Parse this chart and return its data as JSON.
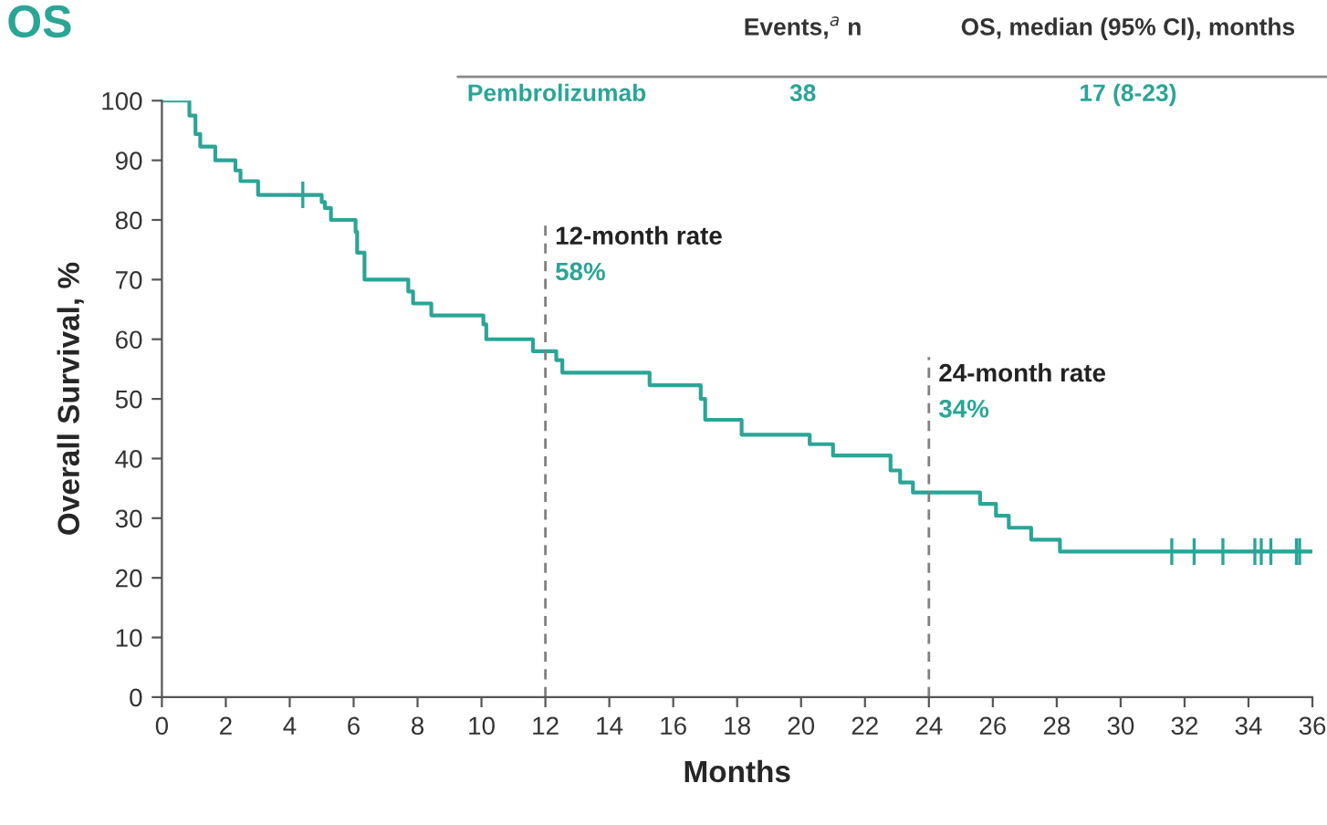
{
  "chart_data": {
    "type": "step",
    "title": "OS",
    "xlabel": "Months",
    "ylabel": "Overall Survival, %",
    "xlim": [
      0,
      36
    ],
    "ylim": [
      0,
      100
    ],
    "xticks": [
      0,
      2,
      4,
      6,
      8,
      10,
      12,
      14,
      16,
      18,
      20,
      22,
      24,
      26,
      28,
      30,
      32,
      34,
      36
    ],
    "yticks": [
      0,
      10,
      20,
      30,
      40,
      50,
      60,
      70,
      80,
      90,
      100
    ],
    "grid": false,
    "legend": false,
    "line_style": "solid",
    "series": [
      {
        "color": "#2aa596",
        "x": [
          0,
          0.86,
          1.05,
          1.2,
          1.3,
          1.67,
          2.3,
          2.46,
          3.01,
          5.0,
          5.1,
          5.29,
          6.06,
          6.11,
          6.34,
          7.71,
          7.86,
          8.43,
          10.06,
          10.15,
          11.61,
          12.34,
          12.53,
          15.26,
          16.86,
          17.0,
          18.14,
          20.27,
          21.0,
          22.8,
          23.1,
          23.5,
          25.6,
          26.1,
          26.5,
          27.2,
          28.1,
          36
        ],
        "values": [
          100,
          97.5,
          94.4,
          92.3,
          92.3,
          90,
          88.3,
          86.5,
          84.2,
          83,
          82,
          80,
          78,
          74.5,
          70,
          68,
          66,
          64,
          62.5,
          60,
          58,
          56.5,
          54.4,
          52.3,
          50,
          46.5,
          44,
          42.4,
          40.5,
          38,
          36,
          34.3,
          32.4,
          30.4,
          28.4,
          26.4,
          24.4,
          24.4
        ]
      },
      {
        "type": "scatter",
        "marker": "cross",
        "color": "#2aa596",
        "x": [
          4.41,
          31.6,
          32.3,
          33.2,
          34.2,
          34.4,
          34.7,
          35.5,
          35.6
        ],
        "values": [
          84.2,
          24.4,
          24.4,
          24.4,
          24.4,
          24.4,
          24.4,
          24.4,
          24.4
        ]
      }
    ],
    "ref_lines": [
      {
        "axis": "x",
        "value": 12,
        "label": "12-month rate",
        "color": "#808080",
        "line_style": "dashed"
      },
      {
        "axis": "x",
        "value": 24,
        "label": "24-month rate",
        "color": "#808080",
        "line_style": "dashed"
      }
    ],
    "annotations": [
      "58%",
      "34%",
      "Events,$^{a}$ n",
      "OS, median (95% CI), months",
      "Pembrolizumab",
      "38",
      "17 (8-23)"
    ]
  }
}
